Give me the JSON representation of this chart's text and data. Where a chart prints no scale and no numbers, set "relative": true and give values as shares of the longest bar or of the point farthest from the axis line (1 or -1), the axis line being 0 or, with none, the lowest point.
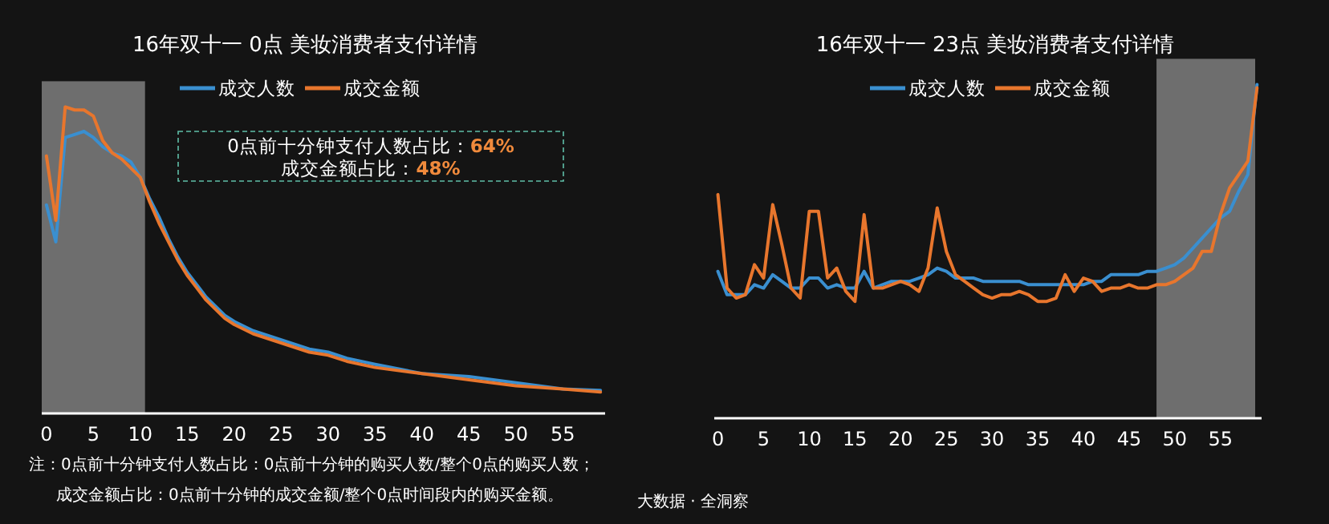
{
  "chart_data": [
    {
      "type": "line",
      "title": "16年双十一 0点 美妆消费者支付详情",
      "relative": true,
      "legend": "top",
      "grid": false,
      "marker": "none",
      "line_style": "solid",
      "x": [
        0,
        1,
        2,
        3,
        4,
        5,
        6,
        7,
        8,
        9,
        10,
        11,
        12,
        13,
        14,
        15,
        16,
        17,
        18,
        19,
        20,
        22,
        25,
        28,
        30,
        32,
        35,
        40,
        45,
        50,
        55,
        59
      ],
      "xlim": [
        -0.5,
        59.5
      ],
      "xticks": [
        0,
        5,
        10,
        15,
        20,
        25,
        30,
        35,
        40,
        45,
        50,
        55
      ],
      "series": [
        {
          "name": "成交人数",
          "color": "#3a8fd0",
          "values": [
            0.68,
            0.56,
            0.9,
            0.91,
            0.92,
            0.9,
            0.87,
            0.85,
            0.84,
            0.82,
            0.77,
            0.7,
            0.64,
            0.57,
            0.51,
            0.46,
            0.42,
            0.38,
            0.35,
            0.32,
            0.3,
            0.27,
            0.24,
            0.21,
            0.2,
            0.18,
            0.16,
            0.13,
            0.12,
            0.1,
            0.08,
            0.075
          ]
        },
        {
          "name": "成交金额",
          "color": "#e8762d",
          "values": [
            0.84,
            0.63,
            1,
            0.99,
            0.99,
            0.97,
            0.89,
            0.85,
            0.83,
            0.8,
            0.77,
            0.69,
            0.62,
            0.56,
            0.5,
            0.45,
            0.41,
            0.37,
            0.34,
            0.31,
            0.29,
            0.26,
            0.23,
            0.2,
            0.19,
            0.17,
            0.15,
            0.13,
            0.11,
            0.09,
            0.08,
            0.07
          ]
        }
      ],
      "bands": [
        {
          "axis": "x",
          "from": -0.5,
          "to": 10.5,
          "color": "#6e6e6e"
        }
      ],
      "annotations": [
        "0点前十分钟支付人数占比：64%",
        "成交金额占比：48%",
        "注：0点前十分钟支付人数占比：0点前十分钟的购买人数/整个0点的购买人数；",
        "成交金额占比：0点前十分钟的成交金额/整个0点时间段内的购买金额。"
      ]
    },
    {
      "type": "line",
      "title": "16年双十一 23点 美妆消费者支付详情",
      "relative": true,
      "legend": "top",
      "grid": false,
      "marker": "none",
      "line_style": "solid",
      "x": [
        0,
        1,
        2,
        3,
        4,
        5,
        6,
        7,
        8,
        9,
        10,
        11,
        12,
        13,
        14,
        15,
        16,
        17,
        18,
        19,
        20,
        21,
        22,
        23,
        24,
        25,
        26,
        27,
        28,
        29,
        30,
        31,
        32,
        33,
        34,
        35,
        36,
        37,
        38,
        39,
        40,
        41,
        42,
        43,
        44,
        45,
        46,
        47,
        48,
        49,
        50,
        51,
        52,
        53,
        54,
        55,
        56,
        57,
        58,
        59
      ],
      "xlim": [
        -0.4,
        59.5
      ],
      "xticks": [
        0,
        5,
        10,
        15,
        20,
        25,
        30,
        35,
        40,
        45,
        50,
        55
      ],
      "series": [
        {
          "name": "成交人数",
          "color": "#3a8fd0",
          "values": [
            0.44,
            0.37,
            0.37,
            0.37,
            0.4,
            0.39,
            0.43,
            0.41,
            0.39,
            0.39,
            0.42,
            0.42,
            0.39,
            0.4,
            0.39,
            0.39,
            0.44,
            0.39,
            0.4,
            0.41,
            0.41,
            0.41,
            0.42,
            0.43,
            0.45,
            0.44,
            0.42,
            0.42,
            0.42,
            0.41,
            0.41,
            0.41,
            0.41,
            0.41,
            0.4,
            0.4,
            0.4,
            0.4,
            0.4,
            0.4,
            0.4,
            0.41,
            0.41,
            0.43,
            0.43,
            0.43,
            0.43,
            0.44,
            0.44,
            0.45,
            0.46,
            0.48,
            0.51,
            0.54,
            0.57,
            0.6,
            0.62,
            0.68,
            0.73,
            1
          ]
        },
        {
          "name": "成交金额",
          "color": "#e8762d",
          "values": [
            0.67,
            0.39,
            0.36,
            0.37,
            0.46,
            0.42,
            0.64,
            0.52,
            0.39,
            0.36,
            0.62,
            0.62,
            0.42,
            0.45,
            0.38,
            0.35,
            0.61,
            0.39,
            0.39,
            0.4,
            0.41,
            0.4,
            0.38,
            0.45,
            0.63,
            0.5,
            0.43,
            0.41,
            0.39,
            0.37,
            0.36,
            0.37,
            0.37,
            0.38,
            0.37,
            0.35,
            0.35,
            0.36,
            0.43,
            0.38,
            0.42,
            0.41,
            0.38,
            0.39,
            0.39,
            0.4,
            0.39,
            0.39,
            0.4,
            0.4,
            0.41,
            0.43,
            0.45,
            0.5,
            0.5,
            0.61,
            0.69,
            0.73,
            0.77,
            0.99
          ]
        }
      ],
      "bands": [
        {
          "axis": "x",
          "from": 48,
          "to": 58.8,
          "color": "#6e6e6e"
        }
      ],
      "annotations": [
        "大数据 · 全洞察"
      ]
    }
  ]
}
